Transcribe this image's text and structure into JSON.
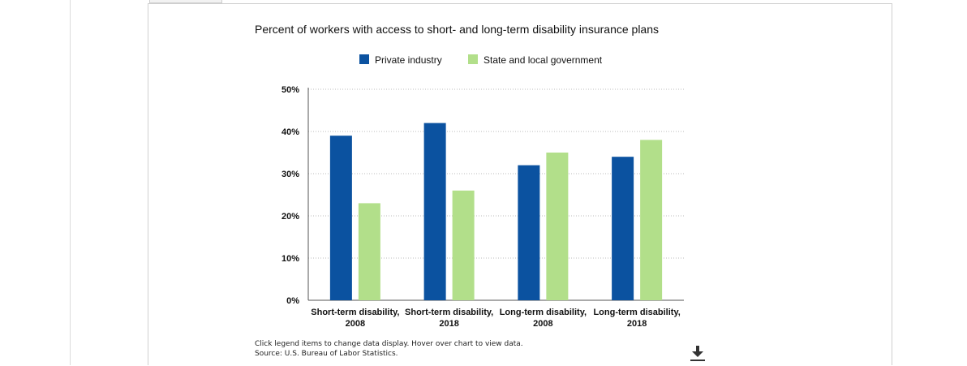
{
  "chart_data": {
    "type": "bar",
    "title": "Percent of workers with access to short- and long-term disability insurance plans",
    "categories": [
      [
        "Short-term disability,",
        "2008"
      ],
      [
        "Short-term disability,",
        "2018"
      ],
      [
        "Long-term disability,",
        "2008"
      ],
      [
        "Long-term disability,",
        "2018"
      ]
    ],
    "series": [
      {
        "name": "Private industry",
        "color": "#0b52a0",
        "values": [
          39,
          42,
          32,
          34
        ]
      },
      {
        "name": "State and local government",
        "color": "#b2df8a",
        "values": [
          23,
          26,
          35,
          38
        ]
      }
    ],
    "y_ticks": [
      "0%",
      "10%",
      "20%",
      "30%",
      "40%",
      "50%"
    ],
    "ylim": [
      0,
      50
    ],
    "grid": true,
    "legend_position": "top-center"
  },
  "notes": {
    "instructions": "Click legend items to change data display. Hover over chart to view data.",
    "source": "Source: U.S. Bureau of Labor Statistics."
  },
  "icons": {
    "download": "download-icon"
  }
}
